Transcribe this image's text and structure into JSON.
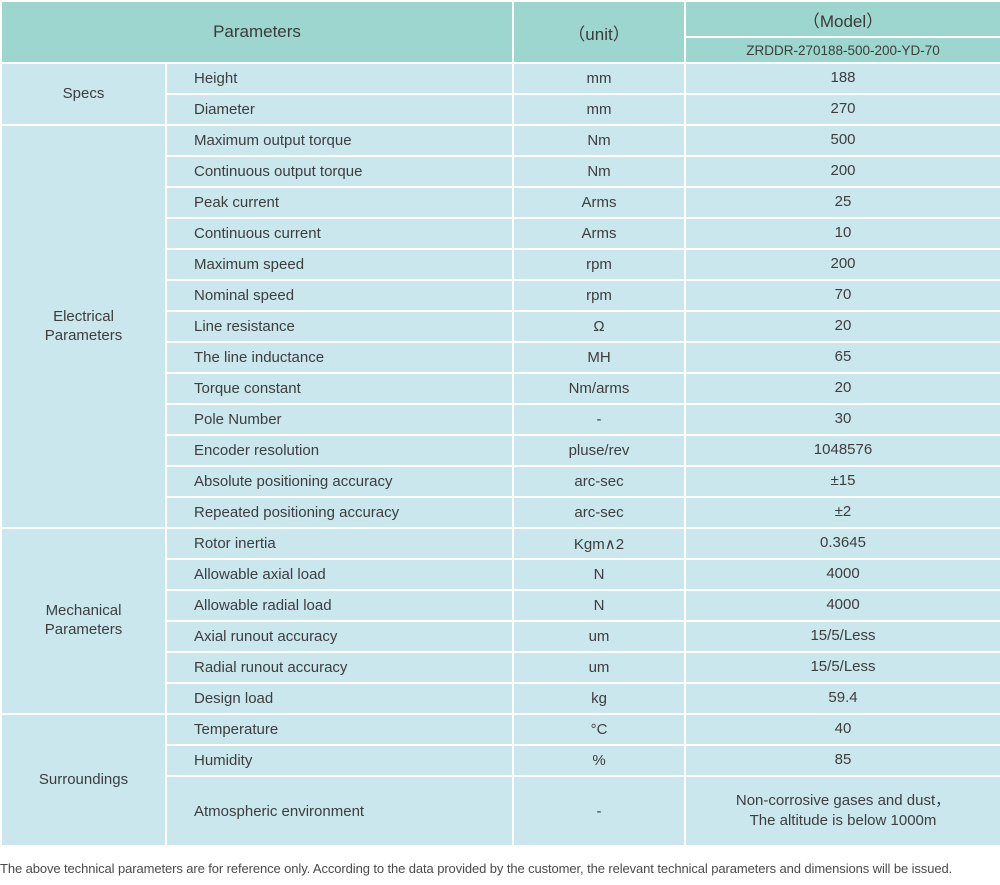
{
  "header": {
    "parameters": "Parameters",
    "unit": "（unit）",
    "model": "（Model）",
    "model_value": "ZRDDR-270188-500-200-YD-70"
  },
  "sections": [
    {
      "label": "Specs",
      "rows": [
        {
          "param": "Height",
          "unit": "mm",
          "value": "188"
        },
        {
          "param": "Diameter",
          "unit": "mm",
          "value": "270"
        }
      ]
    },
    {
      "label": "Electrical\nParameters",
      "rows": [
        {
          "param": "Maximum output torque",
          "unit": "Nm",
          "value": "500"
        },
        {
          "param": "Continuous output torque",
          "unit": "Nm",
          "value": "200"
        },
        {
          "param": "Peak current",
          "unit": "Arms",
          "value": "25"
        },
        {
          "param": "Continuous current",
          "unit": "Arms",
          "value": "10"
        },
        {
          "param": "Maximum speed",
          "unit": "rpm",
          "value": "200"
        },
        {
          "param": "Nominal speed",
          "unit": "rpm",
          "value": "70"
        },
        {
          "param": "Line resistance",
          "unit": "Ω",
          "value": "20"
        },
        {
          "param": "The line inductance",
          "unit": "MH",
          "value": "65"
        },
        {
          "param": "Torque constant",
          "unit": "Nm/arms",
          "value": "20"
        },
        {
          "param": "Pole Number",
          "unit": "-",
          "value": "30"
        },
        {
          "param": "Encoder resolution",
          "unit": "pluse/rev",
          "value": "1048576"
        },
        {
          "param": "Absolute positioning accuracy",
          "unit": "arc-sec",
          "value": "±15"
        },
        {
          "param": "Repeated positioning accuracy",
          "unit": "arc-sec",
          "value": "±2"
        }
      ]
    },
    {
      "label": "Mechanical\nParameters",
      "rows": [
        {
          "param": "Rotor inertia",
          "unit": "Kgm∧2",
          "value": "0.3645"
        },
        {
          "param": "Allowable axial load",
          "unit": "N",
          "value": "4000"
        },
        {
          "param": "Allowable radial load",
          "unit": "N",
          "value": "4000"
        },
        {
          "param": "Axial runout accuracy",
          "unit": "um",
          "value": "15/5/Less"
        },
        {
          "param": "Radial runout accuracy",
          "unit": "um",
          "value": "15/5/Less"
        },
        {
          "param": "Design load",
          "unit": "kg",
          "value": "59.4"
        }
      ]
    },
    {
      "label": "Surroundings",
      "rows": [
        {
          "param": "Temperature",
          "unit": "°C",
          "value": "40"
        },
        {
          "param": "Humidity",
          "unit": "%",
          "value": "85"
        },
        {
          "param": "Atmospheric environment",
          "unit": "-",
          "value": "Non-corrosive gases and dust，\nThe altitude is below 1000m"
        }
      ]
    }
  ],
  "footer": "The above technical parameters are for reference only. According to the data provided by the customer, the relevant technical parameters and dimensions will be issued.",
  "colors": {
    "header_bg": "#9dd6ce",
    "body_bg": "#cbe7ee",
    "grid": "#ffffff",
    "text": "#3d3d3d"
  }
}
